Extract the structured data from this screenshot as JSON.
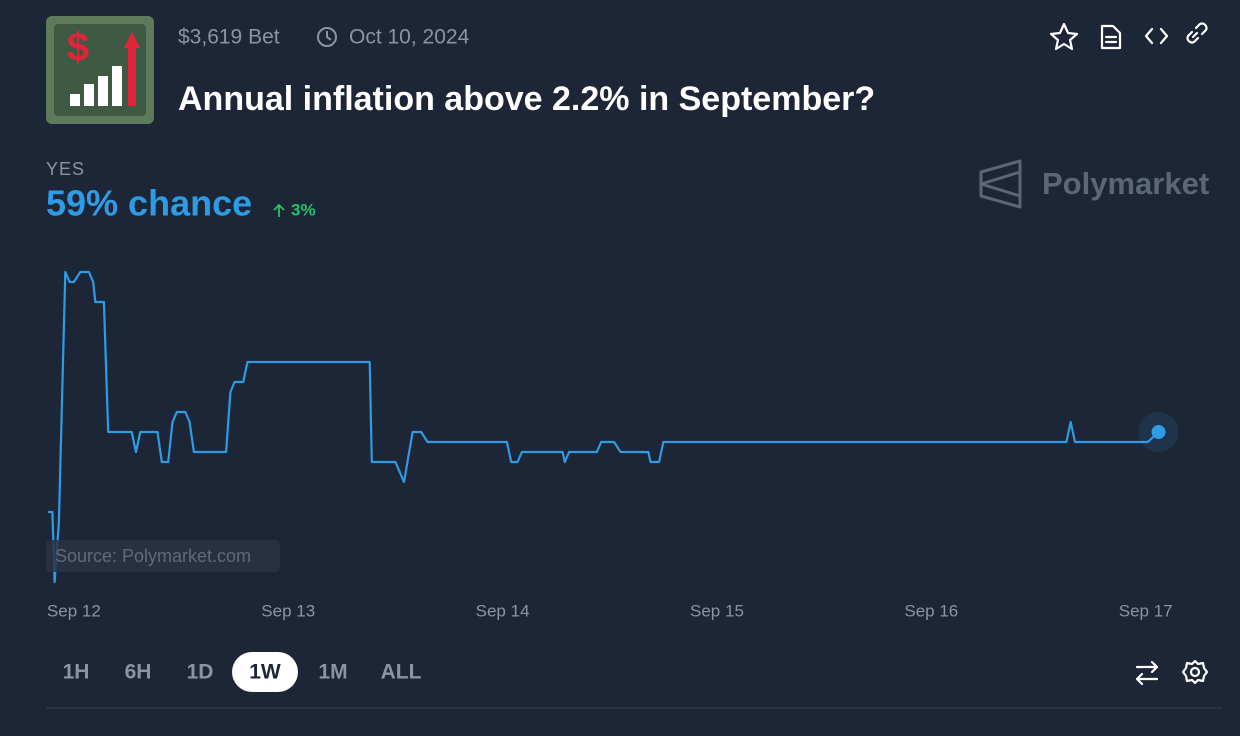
{
  "header": {
    "volume": "$3,619 Bet",
    "date": "Oct 10, 2024",
    "title": "Annual inflation above 2.2% in September?"
  },
  "outcome": {
    "label": "YES",
    "chance": "59% chance",
    "change": "3%"
  },
  "brand": "Polymarket",
  "chart_data": {
    "type": "line",
    "annotation": "Source: Polymarket.com",
    "x": [
      -0.12,
      -0.1,
      -0.09,
      -0.07,
      -0.04,
      -0.02,
      0.0,
      0.03,
      0.07,
      0.09,
      0.1,
      0.14,
      0.16,
      0.27,
      0.29,
      0.31,
      0.39,
      0.41,
      0.44,
      0.46,
      0.48,
      0.52,
      0.54,
      0.56,
      0.71,
      0.73,
      0.75,
      0.79,
      0.81,
      1.38,
      1.39,
      1.5,
      1.54,
      1.58,
      1.62,
      1.65,
      2.02,
      2.04,
      2.07,
      2.09,
      2.28,
      2.29,
      2.31,
      2.44,
      2.46,
      2.52,
      2.55,
      2.68,
      2.69,
      2.73,
      2.75,
      4.63,
      4.65,
      4.67,
      5.01,
      5.06
    ],
    "series": [
      {
        "name": "Yes",
        "color": "#2e9be5",
        "values": [
          51,
          51,
          44,
          50,
          75,
          74,
          74,
          75,
          75,
          74,
          72,
          72,
          59,
          59,
          57,
          59,
          59,
          56,
          56,
          60,
          61,
          61,
          60,
          57,
          57,
          63,
          64,
          64,
          66,
          66,
          56,
          56,
          54,
          59,
          59,
          58,
          58,
          56,
          56,
          57,
          57,
          56,
          57,
          57,
          58,
          58,
          57,
          57,
          56,
          56,
          58,
          58,
          60,
          58,
          58,
          59
        ]
      }
    ],
    "xlim": [
      -0.13,
      5.16
    ],
    "ylim": [
      40,
      78
    ],
    "xticks": [
      {
        "value": 0,
        "label": "Sep 12"
      },
      {
        "value": 1,
        "label": "Sep 13"
      },
      {
        "value": 2,
        "label": "Sep 14"
      },
      {
        "value": 3,
        "label": "Sep 15"
      },
      {
        "value": 4,
        "label": "Sep 16"
      },
      {
        "value": 5,
        "label": "Sep 17"
      }
    ]
  },
  "controls": {
    "ranges": [
      "1H",
      "6H",
      "1D",
      "1W",
      "1M",
      "ALL"
    ],
    "active": "1W"
  }
}
